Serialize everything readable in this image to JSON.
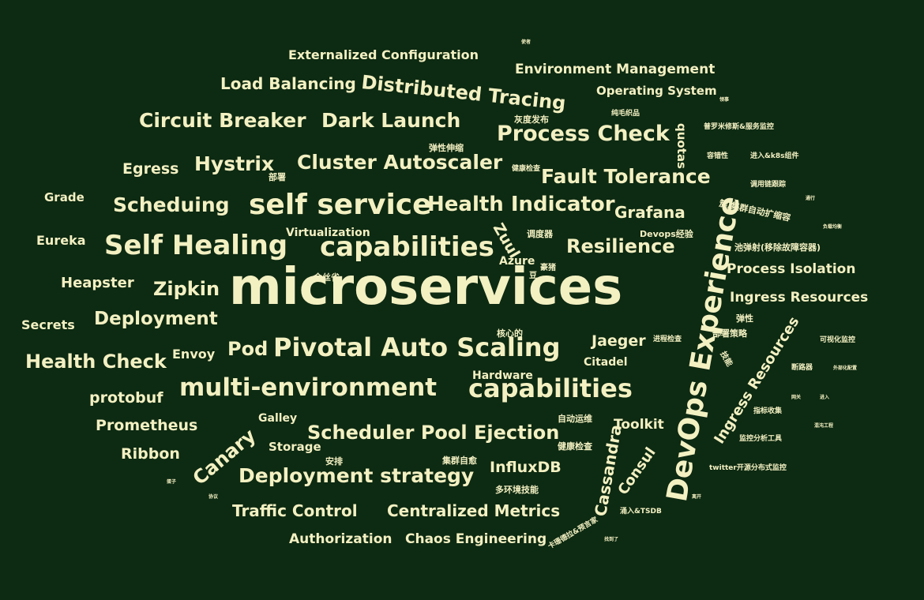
{
  "palette": {
    "background": "#0d2a12",
    "text": "#f3f0c2"
  },
  "words": {
    "w_microservices": "microservices",
    "w_devops_experience": "DevOps Experience",
    "w_self_service": "self service",
    "w_capabilities1": "capabilities",
    "w_capabilities2": "capabilities",
    "w_self_healing": "Self Healing",
    "w_multi_env": "multi-environment",
    "w_pivotal": "Pivotal Auto Scaling",
    "w_scheduler_pool": "Scheduler Pool Ejection",
    "w_deploy_strategy": "Deployment strategy",
    "w_distributed_tracing": "Distributed Tracing",
    "w_process_check": "Process Check",
    "w_fault_tolerance": "Fault Tolerance",
    "w_health_indicator": "Health Indicator",
    "w_cluster_autoscaler": "Cluster Autoscaler",
    "w_circuit_breaker": "Circuit Breaker",
    "w_dark_launch": "Dark Launch",
    "w_load_balancing": "Load Balancing",
    "w_externalized_config": "Externalized Configuration",
    "w_env_management": "Environment Management",
    "w_operating_system": "Operating System",
    "w_hystrix": "Hystrix",
    "w_egress": "Egress",
    "w_scheduing": "Scheduing",
    "w_grade": "Grade",
    "w_eureka": "Eureka",
    "w_heapster": "Heapster",
    "w_zipkin": "Zipkin",
    "w_secrets": "Secrets",
    "w_deployment": "Deployment",
    "w_health_check": "Health Check",
    "w_envoy": "Envoy",
    "w_pod": "Pod",
    "w_protobuf": "protobuf",
    "w_prometheus": "Prometheus",
    "w_ribbon": "Ribbon",
    "w_canary": "Canary",
    "w_galley": "Galley",
    "w_storage": "Storage",
    "w_traffic_control": "Traffic Control",
    "w_centralized_metrics": "Centralized Metrics",
    "w_authorization": "Authorization",
    "w_chaos_engineering": "Chaos Engineering",
    "w_influxdb": "InfluxDB",
    "w_cassandra": "Cassandra",
    "w_consul": "Consul",
    "w_toolkit": "Toolkit",
    "w_jaeger": "Jaeger",
    "w_citadel": "Citadel",
    "w_hardware": "Hardware",
    "w_resilience": "Resilience",
    "w_grafana": "Grafana",
    "w_zuul": "Zuul",
    "w_azure": "Azure",
    "w_virtualization": "Virtualization",
    "w_quotas": "quotas",
    "w_process_isolation": "Process Isolation",
    "w_ingress_resources1": "Ingress Resources",
    "w_ingress_resources2": "Ingress Resources",
    "w_devops_exp_cn": "Devops经验",
    "w_canary_release_cn": "灰度发布",
    "w_elastic_scale_cn": "弹性伸缩",
    "w_deploy_cn": "部署",
    "w_health_check_cn": "健康检查",
    "w_scheduler_cn": "调度器",
    "w_pampered_cn": "豪猪",
    "w_bean_cn": "豆",
    "w_goldfinch_cn": "金丝雀",
    "w_core_cn": "核心的",
    "w_auto_ops_cn": "自动运维",
    "w_health_check2_cn": "健康检查",
    "w_arrange_cn": "安排",
    "w_cluster_heal_cn": "集群自愈",
    "w_multi_env_skill_cn": "多环境技能",
    "w_pure_wool_cn": "纯毛织品",
    "w_prometheus_svc_cn": "普罗米修斯&服务监控",
    "w_fault_tol_cn": "容错性",
    "w_enter_k8s_cn": "进入&k8s组件",
    "w_call_trace_cn": "调用链跟踪",
    "w_cluster_autoscale_cn": "簇/集群自动扩缩容",
    "w_pool_eject_cn": "池弹射(移除故障容器)",
    "w_elastic_cn": "弹性",
    "w_deploy_strategy_cn": "部署策略",
    "w_process_check_cn": "进程检查",
    "w_visual_monitor_cn": "可视化监控",
    "w_skill_cn": "技能",
    "w_breaker_cn": "断路器",
    "w_external_config_cn": "外部化配置",
    "w_metric_collect_cn": "指标收集",
    "w_gateway_cn": "网关",
    "w_enter_cn": "进入",
    "w_chaos_eng_cn": "混沌工程",
    "w_monitor_tool_cn": "监控分析工具",
    "w_twitter_cn": "twitter开源分布式监控",
    "w_leave_cn": "离开",
    "w_inflow_tsdb_cn": "涌入&TSDB",
    "w_cassandra_cn": "卡珊德拉&预言家",
    "w_found_cn": "找到了",
    "w_messenger_cn": "使者",
    "w_leader_cn": "领事",
    "w_traffic_cn": "通行",
    "w_lb_cn": "负载均衡",
    "w_protocol_cn": "协议",
    "w_egg_cn": "蛋子"
  }
}
